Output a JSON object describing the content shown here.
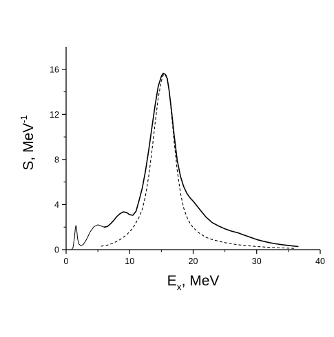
{
  "chart_data": {
    "type": "line",
    "title": "",
    "xlabel": {
      "main": "E",
      "sub": "x",
      "rest": ", MeV"
    },
    "ylabel": {
      "main": "S, MeV",
      "sup": "-1"
    },
    "xlim": [
      0,
      40
    ],
    "ylim": [
      0,
      18
    ],
    "x_ticks": [
      0,
      10,
      20,
      30,
      40
    ],
    "y_ticks": [
      0,
      4,
      8,
      12,
      16
    ],
    "x_tick_labels": [
      "0",
      "10",
      "20",
      "30",
      "40"
    ],
    "y_tick_labels": [
      "0",
      "4",
      "8",
      "12",
      "16"
    ],
    "grid": false,
    "legend": "none",
    "series": [
      {
        "style": "solid-thin",
        "color": "#000000",
        "x": [
          0.9,
          1.1,
          1.3,
          1.45,
          1.55,
          1.65,
          1.8,
          2.0,
          2.3,
          2.7,
          3.2,
          3.8,
          4.4,
          5.0,
          5.5,
          6.0
        ],
        "y": [
          0.02,
          0.2,
          1.0,
          1.9,
          2.15,
          1.9,
          1.0,
          0.5,
          0.35,
          0.45,
          0.9,
          1.6,
          2.05,
          2.2,
          2.1,
          2.0
        ]
      },
      {
        "style": "solid",
        "color": "#000000",
        "x": [
          6.0,
          6.5,
          7.0,
          7.5,
          8.0,
          8.5,
          9.0,
          9.5,
          10.0,
          10.5,
          11.0,
          11.5,
          12.0,
          12.5,
          13.0,
          13.5,
          14.0,
          14.5,
          15.0,
          15.3,
          15.6,
          15.9,
          16.2,
          16.6,
          17.0,
          17.5,
          18.0,
          18.5,
          19.0,
          19.5,
          20.0,
          21.0,
          22.0,
          23.0,
          24.0,
          25.0,
          26.0,
          27.0,
          28.0,
          29.0,
          30.0,
          31.0,
          32.0,
          33.0,
          34.0,
          35.0,
          36.0,
          36.5
        ],
        "y": [
          2.0,
          2.05,
          2.3,
          2.6,
          2.95,
          3.2,
          3.35,
          3.3,
          3.1,
          3.05,
          3.4,
          4.4,
          5.5,
          7.0,
          8.8,
          10.8,
          12.8,
          14.5,
          15.4,
          15.65,
          15.55,
          15.2,
          14.2,
          12.3,
          10.2,
          7.9,
          6.5,
          5.6,
          5.0,
          4.6,
          4.3,
          3.6,
          2.9,
          2.4,
          2.1,
          1.85,
          1.65,
          1.5,
          1.3,
          1.1,
          0.9,
          0.75,
          0.62,
          0.52,
          0.44,
          0.37,
          0.31,
          0.28
        ]
      },
      {
        "style": "dashed",
        "color": "#000000",
        "x": [
          5.5,
          6.5,
          7.5,
          8.5,
          9.5,
          10.5,
          11.5,
          12.0,
          12.5,
          13.0,
          13.5,
          14.0,
          14.5,
          15.0,
          15.3,
          15.6,
          15.9,
          16.2,
          16.6,
          17.0,
          17.5,
          18.0,
          18.5,
          19.0,
          19.5,
          20.0,
          21.0,
          22.0,
          23.0,
          24.0,
          25.0,
          26.0,
          27.0,
          28.0,
          30.0,
          32.0,
          34.0,
          36.0
        ],
        "y": [
          0.3,
          0.4,
          0.6,
          0.9,
          1.3,
          1.9,
          2.9,
          3.6,
          4.8,
          6.5,
          8.7,
          11.2,
          13.5,
          15.0,
          15.5,
          15.6,
          15.3,
          14.3,
          12.0,
          9.6,
          7.0,
          5.0,
          3.7,
          2.9,
          2.35,
          1.95,
          1.45,
          1.1,
          0.9,
          0.75,
          0.62,
          0.52,
          0.44,
          0.38,
          0.28,
          0.2,
          0.15,
          0.11
        ]
      }
    ]
  }
}
